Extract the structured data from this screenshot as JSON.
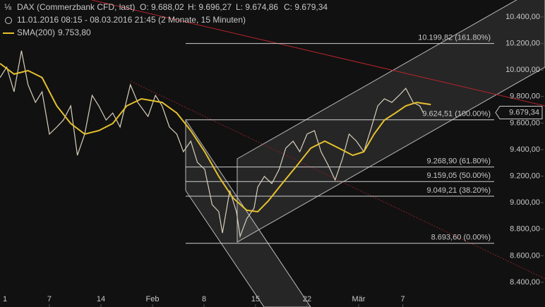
{
  "chart_data": {
    "type": "line",
    "title": "DAX (Commerzbank CFD, last)",
    "open": "O: 9.688,02",
    "high": "H: 9.696,27",
    "low": "L: 9.674,86",
    "close": "C: 9.679,34",
    "subtitle": "11.01.2016 08:15 - 08.03.2016 21:45 (2 Monate, 15 Minuten)",
    "xlim": [
      0.29,
      74.31
    ],
    "xticks": [
      {
        "value": 0,
        "label": "1"
      },
      7,
      14,
      {
        "value": 21,
        "label": "Feb"
      },
      {
        "value": 28,
        "label": "8"
      },
      {
        "value": 35,
        "label": "15"
      },
      {
        "value": 42,
        "label": "22"
      },
      {
        "value": 49,
        "label": "Mär"
      },
      {
        "value": 55,
        "label": "7"
      }
    ],
    "ylim": [
      8213.8,
      10527.7
    ],
    "yticks": [
      {
        "value": 8400,
        "label": "8.400,00"
      },
      {
        "value": 8600,
        "label": "8.600,00"
      },
      {
        "value": 8800,
        "label": "8.800,00"
      },
      {
        "value": 9000,
        "label": "9.000,00"
      },
      {
        "value": 9200,
        "label": "9.200,00"
      },
      {
        "value": 9400,
        "label": "9.400,00"
      },
      {
        "value": 9600,
        "label": "9.600,00"
      },
      {
        "value": 9800,
        "label": "9.800,00"
      },
      {
        "value": 10000,
        "label": "10.000,00"
      },
      {
        "value": 10200,
        "label": "10.200,00"
      },
      {
        "value": 10400,
        "label": "10.400,00"
      }
    ],
    "series": [
      {
        "color": "#d9d0bd",
        "x": [
          0.3,
          1.2,
          2.2,
          3.2,
          4.1,
          5.1,
          6.0,
          7.0,
          8.0,
          8.9,
          9.9,
          10.8,
          11.8,
          12.8,
          13.7,
          14.7,
          15.6,
          16.6,
          18.0,
          19.0,
          20.4,
          21.4,
          22.3,
          23.3,
          24.3,
          25.2,
          26.2,
          27.1,
          28.1,
          29.1,
          30.0,
          30.5,
          31.5,
          32.4,
          32.9,
          33.8,
          34.8,
          35.3,
          36.2,
          37.2,
          38.2,
          39.1,
          40.1,
          41.0,
          42.0,
          43.0,
          43.9,
          44.9,
          45.8,
          46.8,
          47.7,
          48.7,
          49.7,
          50.6,
          51.6,
          52.5,
          53.5,
          54.5,
          55.4,
          56.4,
          57.3,
          57.8
        ],
        "values": [
          9943,
          10022,
          9836,
          10145,
          9889,
          9756,
          9836,
          9517,
          9570,
          9623,
          9730,
          9357,
          9517,
          9809,
          9730,
          9623,
          9676,
          9570,
          9889,
          9756,
          9650,
          9809,
          9730,
          9570,
          9517,
          9384,
          9464,
          9304,
          9251,
          8985,
          8932,
          8772,
          9091,
          8932,
          8746,
          8879,
          8959,
          9118,
          9198,
          9144,
          9251,
          9411,
          9464,
          9384,
          9517,
          9543,
          9384,
          9278,
          9171,
          9331,
          9517,
          9464,
          9384,
          9543,
          9730,
          9783,
          9756,
          9809,
          9862,
          9756,
          9730,
          9676
        ]
      },
      {
        "name": "SMA(200)",
        "color": "#e6c12e",
        "last_label": "9.753,80",
        "x": [
          0.3,
          2.2,
          4.1,
          6.0,
          8.0,
          9.9,
          11.8,
          13.7,
          15.6,
          17.5,
          19.5,
          22.3,
          24.3,
          26.2,
          28.1,
          30.0,
          31.9,
          33.8,
          35.3,
          36.7,
          38.6,
          40.6,
          42.5,
          44.4,
          46.3,
          48.2,
          49.7,
          51.1,
          52.5,
          54.0,
          55.4,
          56.9,
          58.8
        ],
        "values": [
          10049,
          9969,
          9996,
          9943,
          9730,
          9597,
          9517,
          9543,
          9597,
          9730,
          9783,
          9756,
          9676,
          9543,
          9384,
          9198,
          9038,
          8943,
          8932,
          9011,
          9144,
          9278,
          9411,
          9464,
          9411,
          9357,
          9384,
          9517,
          9623,
          9676,
          9730,
          9756,
          9740
        ]
      }
    ],
    "fib_levels": [
      {
        "value": 10199.82,
        "label": "10.199,82 (161.80%)"
      },
      {
        "value": 9624.51,
        "label": "9.624,51 (100.00%)"
      },
      {
        "value": 9268.9,
        "label": "9.268,90 (61.80%)"
      },
      {
        "value": 9159.05,
        "label": "9.159,05 (50.00%)"
      },
      {
        "value": 9049.21,
        "label": "9.049,21 (38.20%)"
      },
      {
        "value": 8693.6,
        "label": "8.693,60 (0.00%)"
      }
    ],
    "last_price": {
      "value": 9679.34,
      "label": "9.679,34"
    }
  }
}
